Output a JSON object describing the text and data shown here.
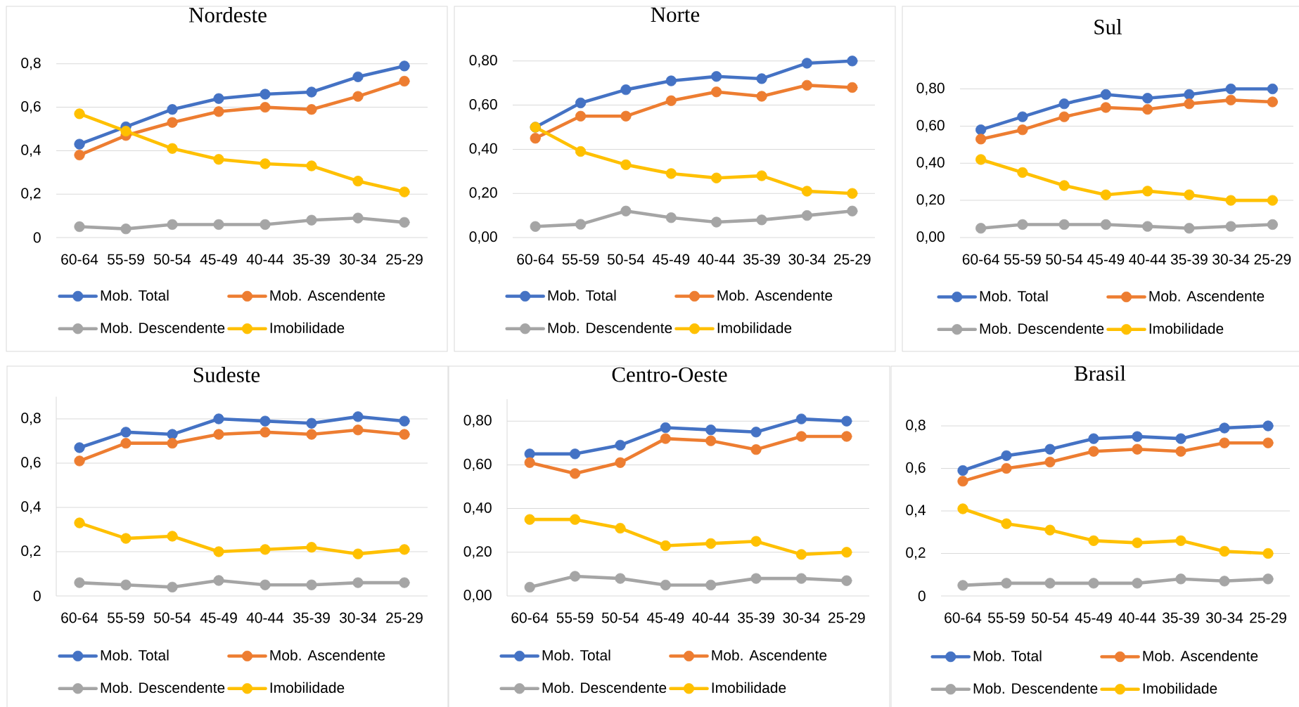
{
  "chart_data": [
    {
      "type": "line",
      "title": "Nordeste",
      "categories": [
        "60-64",
        "55-59",
        "50-54",
        "45-49",
        "40-44",
        "35-39",
        "30-34",
        "25-29"
      ],
      "ylim": [
        0,
        0.8
      ],
      "yticks": [
        0,
        {
          "value": 0.2,
          "label": "0,2"
        },
        {
          "value": 0.4,
          "label": "0,4"
        },
        {
          "value": 0.6,
          "label": "0,6"
        },
        {
          "value": 0.8,
          "label": "0,8"
        }
      ],
      "grid": "y",
      "legend": "bottom",
      "marker": "circle",
      "line_style": "solid",
      "series": [
        {
          "name": "Mob. Total",
          "color": "#4472c4",
          "values": [
            0.43,
            0.51,
            0.59,
            0.64,
            0.66,
            0.67,
            0.74,
            0.79
          ]
        },
        {
          "name": "Mob. Ascendente",
          "color": "#ed7d31",
          "values": [
            0.38,
            0.47,
            0.53,
            0.58,
            0.6,
            0.59,
            0.65,
            0.72
          ]
        },
        {
          "name": "Mob. Descendente",
          "color": "#a5a5a5",
          "values": [
            0.05,
            0.04,
            0.06,
            0.06,
            0.06,
            0.08,
            0.09,
            0.07
          ]
        },
        {
          "name": "Imobilidade",
          "color": "#ffc000",
          "values": [
            0.57,
            0.49,
            0.41,
            0.36,
            0.34,
            0.33,
            0.26,
            0.21
          ]
        }
      ]
    },
    {
      "type": "line",
      "title": "Norte",
      "categories": [
        "60-64",
        "55-59",
        "50-54",
        "45-49",
        "40-44",
        "35-39",
        "30-34",
        "25-29"
      ],
      "ylim": [
        0,
        0.8
      ],
      "yticks": [
        {
          "value": 0,
          "label": "0,00"
        },
        {
          "value": 0.2,
          "label": "0,20"
        },
        {
          "value": 0.4,
          "label": "0,40"
        },
        {
          "value": 0.6,
          "label": "0,60"
        },
        {
          "value": 0.8,
          "label": "0,80"
        }
      ],
      "grid": "y",
      "legend": "bottom",
      "marker": "circle",
      "line_style": "solid",
      "series": [
        {
          "name": "Mob. Total",
          "color": "#4472c4",
          "values": [
            0.5,
            0.61,
            0.67,
            0.71,
            0.73,
            0.72,
            0.79,
            0.8
          ]
        },
        {
          "name": "Mob. Ascendente",
          "color": "#ed7d31",
          "values": [
            0.45,
            0.55,
            0.55,
            0.62,
            0.66,
            0.64,
            0.69,
            0.68
          ]
        },
        {
          "name": "Mob. Descendente",
          "color": "#a5a5a5",
          "values": [
            0.05,
            0.06,
            0.12,
            0.09,
            0.07,
            0.08,
            0.1,
            0.12
          ]
        },
        {
          "name": "Imobilidade",
          "color": "#ffc000",
          "values": [
            0.5,
            0.39,
            0.33,
            0.29,
            0.27,
            0.28,
            0.21,
            0.2
          ]
        }
      ]
    },
    {
      "type": "line",
      "title": "Sul",
      "categories": [
        "60-64",
        "55-59",
        "50-54",
        "45-49",
        "40-44",
        "35-39",
        "30-34",
        "25-29"
      ],
      "ylim": [
        0,
        0.8
      ],
      "yticks": [
        {
          "value": 0,
          "label": "0,00"
        },
        {
          "value": 0.2,
          "label": "0,20"
        },
        {
          "value": 0.4,
          "label": "0,40"
        },
        {
          "value": 0.6,
          "label": "0,60"
        },
        {
          "value": 0.8,
          "label": "0,80"
        }
      ],
      "grid": "y",
      "legend": "bottom",
      "marker": "circle",
      "line_style": "solid",
      "series": [
        {
          "name": "Mob. Total",
          "color": "#4472c4",
          "values": [
            0.58,
            0.65,
            0.72,
            0.77,
            0.75,
            0.77,
            0.8,
            0.8
          ]
        },
        {
          "name": "Mob. Ascendente",
          "color": "#ed7d31",
          "values": [
            0.53,
            0.58,
            0.65,
            0.7,
            0.69,
            0.72,
            0.74,
            0.73
          ]
        },
        {
          "name": "Mob. Descendente",
          "color": "#a5a5a5",
          "values": [
            0.05,
            0.07,
            0.07,
            0.07,
            0.06,
            0.05,
            0.06,
            0.07
          ]
        },
        {
          "name": "Imobilidade",
          "color": "#ffc000",
          "values": [
            0.42,
            0.35,
            0.28,
            0.23,
            0.25,
            0.23,
            0.2,
            0.2
          ]
        }
      ]
    },
    {
      "type": "line",
      "title": "Sudeste",
      "categories": [
        "60-64",
        "55-59",
        "50-54",
        "45-49",
        "40-44",
        "35-39",
        "30-34",
        "25-29"
      ],
      "ylim": [
        0,
        0.9
      ],
      "yticks": [
        0,
        {
          "value": 0.2,
          "label": "0,2"
        },
        {
          "value": 0.4,
          "label": "0,4"
        },
        {
          "value": 0.6,
          "label": "0,6"
        },
        {
          "value": 0.8,
          "label": "0,8"
        }
      ],
      "grid": "y",
      "legend": "bottom",
      "marker": "circle",
      "line_style": "solid",
      "series": [
        {
          "name": "Mob. Total",
          "color": "#4472c4",
          "values": [
            0.67,
            0.74,
            0.73,
            0.8,
            0.79,
            0.78,
            0.81,
            0.79
          ]
        },
        {
          "name": "Mob. Ascendente",
          "color": "#ed7d31",
          "values": [
            0.61,
            0.69,
            0.69,
            0.73,
            0.74,
            0.73,
            0.75,
            0.73
          ]
        },
        {
          "name": "Mob. Descendente",
          "color": "#a5a5a5",
          "values": [
            0.06,
            0.05,
            0.04,
            0.07,
            0.05,
            0.05,
            0.06,
            0.06
          ]
        },
        {
          "name": "Imobilidade",
          "color": "#ffc000",
          "values": [
            0.33,
            0.26,
            0.27,
            0.2,
            0.21,
            0.22,
            0.19,
            0.21
          ]
        }
      ]
    },
    {
      "type": "line",
      "title": "Centro-Oeste",
      "categories": [
        "60-64",
        "55-59",
        "50-54",
        "45-49",
        "40-44",
        "35-39",
        "30-34",
        "25-29"
      ],
      "ylim": [
        0,
        0.9
      ],
      "yticks": [
        {
          "value": 0,
          "label": "0,00"
        },
        {
          "value": 0.2,
          "label": "0,20"
        },
        {
          "value": 0.4,
          "label": "0,40"
        },
        {
          "value": 0.6,
          "label": "0,60"
        },
        {
          "value": 0.8,
          "label": "0,80"
        }
      ],
      "grid": "y",
      "legend": "bottom",
      "marker": "circle",
      "line_style": "solid",
      "series": [
        {
          "name": "Mob. Total",
          "color": "#4472c4",
          "values": [
            0.65,
            0.65,
            0.69,
            0.77,
            0.76,
            0.75,
            0.81,
            0.8
          ]
        },
        {
          "name": "Mob. Ascendente",
          "color": "#ed7d31",
          "values": [
            0.61,
            0.56,
            0.61,
            0.72,
            0.71,
            0.67,
            0.73,
            0.73
          ]
        },
        {
          "name": "Mob. Descendente",
          "color": "#a5a5a5",
          "values": [
            0.04,
            0.09,
            0.08,
            0.05,
            0.05,
            0.08,
            0.08,
            0.07
          ]
        },
        {
          "name": "Imobilidade",
          "color": "#ffc000",
          "values": [
            0.35,
            0.35,
            0.31,
            0.23,
            0.24,
            0.25,
            0.19,
            0.2
          ]
        }
      ]
    },
    {
      "type": "line",
      "title": "Brasil",
      "categories": [
        "60-64",
        "55-59",
        "50-54",
        "45-49",
        "40-44",
        "35-39",
        "30-34",
        "25-29"
      ],
      "ylim": [
        0,
        0.8
      ],
      "yticks": [
        0,
        {
          "value": 0.2,
          "label": "0,2"
        },
        {
          "value": 0.4,
          "label": "0,4"
        },
        {
          "value": 0.6,
          "label": "0,6"
        },
        {
          "value": 0.8,
          "label": "0,8"
        }
      ],
      "grid": "y",
      "legend": "bottom",
      "marker": "circle",
      "line_style": "solid",
      "series": [
        {
          "name": "Mob. Total",
          "color": "#4472c4",
          "values": [
            0.59,
            0.66,
            0.69,
            0.74,
            0.75,
            0.74,
            0.79,
            0.8
          ]
        },
        {
          "name": "Mob. Ascendente",
          "color": "#ed7d31",
          "values": [
            0.54,
            0.6,
            0.63,
            0.68,
            0.69,
            0.68,
            0.72,
            0.72
          ]
        },
        {
          "name": "Mob. Descendente",
          "color": "#a5a5a5",
          "values": [
            0.05,
            0.06,
            0.06,
            0.06,
            0.06,
            0.08,
            0.07,
            0.08
          ]
        },
        {
          "name": "Imobilidade",
          "color": "#ffc000",
          "values": [
            0.41,
            0.34,
            0.31,
            0.26,
            0.25,
            0.26,
            0.21,
            0.2
          ]
        }
      ]
    }
  ]
}
